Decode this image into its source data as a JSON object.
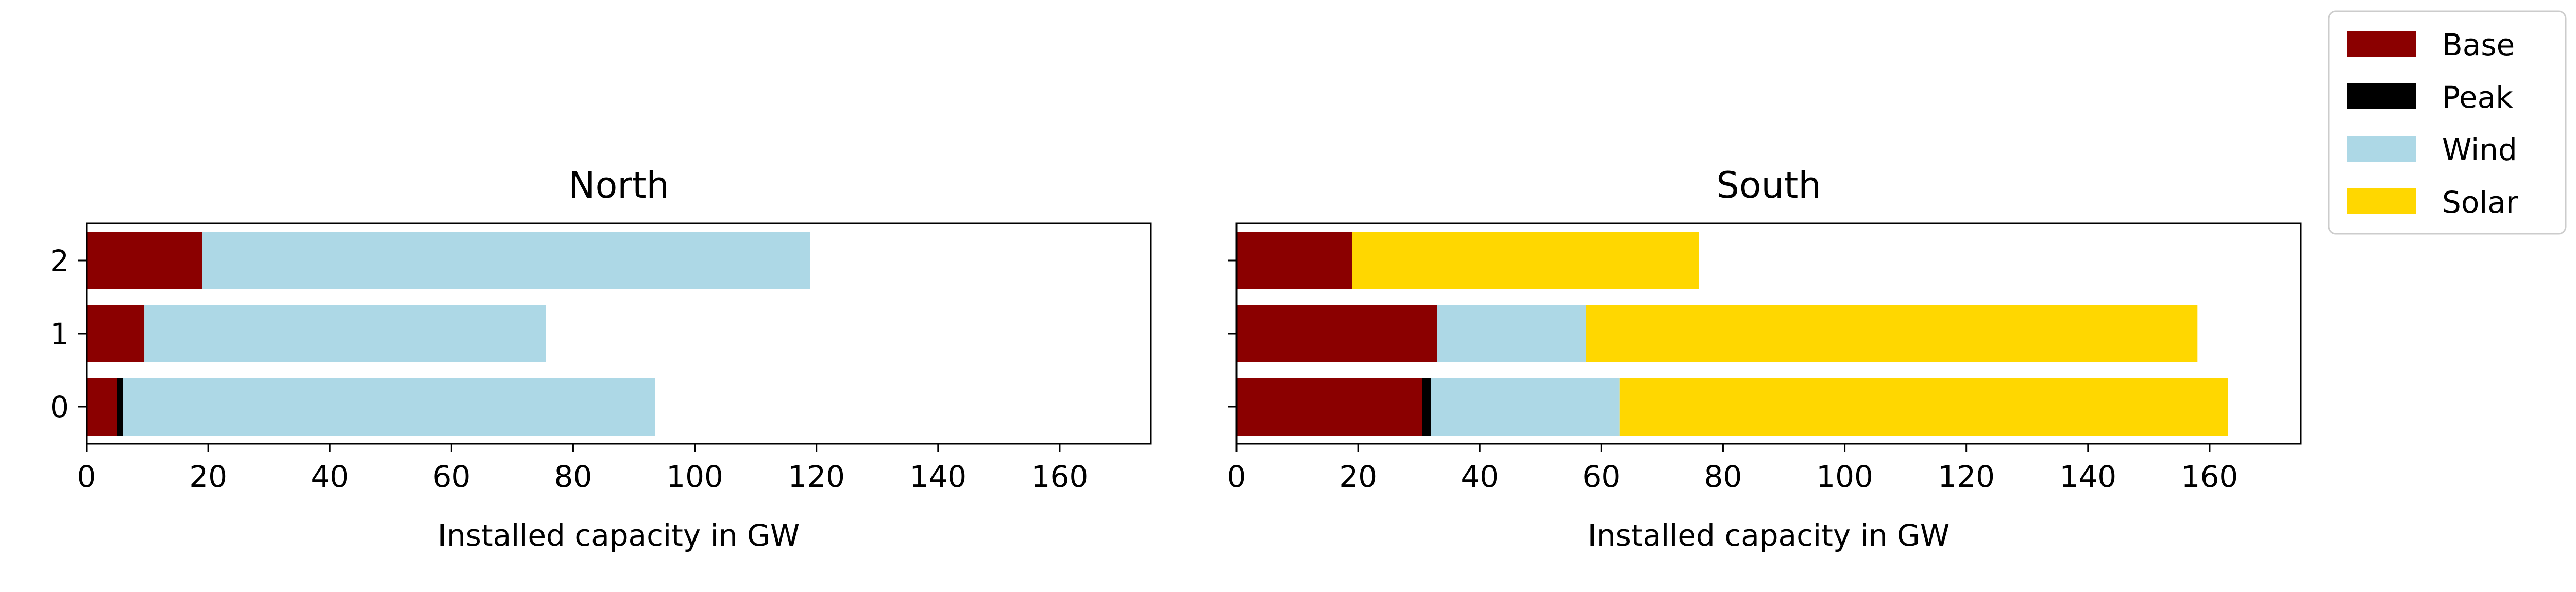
{
  "chart_data": [
    {
      "type": "bar",
      "orientation": "horizontal",
      "stacked": true,
      "title": "North",
      "xlabel": "Installed capacity in GW",
      "ylabel": "",
      "xlim": [
        0,
        175
      ],
      "xticks": [
        0,
        20,
        40,
        60,
        80,
        100,
        120,
        140,
        160
      ],
      "categories": [
        "0",
        "1",
        "2"
      ],
      "series": [
        {
          "name": "Base",
          "values": [
            5.0,
            9.5,
            19.0
          ]
        },
        {
          "name": "Peak",
          "values": [
            1.0,
            0.0,
            0.0
          ]
        },
        {
          "name": "Wind",
          "values": [
            87.5,
            66.0,
            100.0
          ]
        },
        {
          "name": "Solar",
          "values": [
            0.0,
            0.0,
            0.0
          ]
        }
      ],
      "grid": false
    },
    {
      "type": "bar",
      "orientation": "horizontal",
      "stacked": true,
      "title": "South",
      "xlabel": "Installed capacity in GW",
      "ylabel": "",
      "xlim": [
        0,
        175
      ],
      "xticks": [
        0,
        20,
        40,
        60,
        80,
        100,
        120,
        140,
        160
      ],
      "categories": [
        "0",
        "1",
        "2"
      ],
      "series": [
        {
          "name": "Base",
          "values": [
            30.5,
            33.0,
            19.0
          ]
        },
        {
          "name": "Peak",
          "values": [
            1.5,
            0.0,
            0.0
          ]
        },
        {
          "name": "Wind",
          "values": [
            31.0,
            24.5,
            0.0
          ]
        },
        {
          "name": "Solar",
          "values": [
            100.0,
            100.5,
            57.0
          ]
        }
      ],
      "grid": false
    }
  ],
  "legend": {
    "placement": "top-right",
    "entries": [
      {
        "name": "Base",
        "color": "#8b0000"
      },
      {
        "name": "Peak",
        "color": "#000000"
      },
      {
        "name": "Wind",
        "color": "#add8e6"
      },
      {
        "name": "Solar",
        "color": "#ffd700"
      }
    ]
  }
}
